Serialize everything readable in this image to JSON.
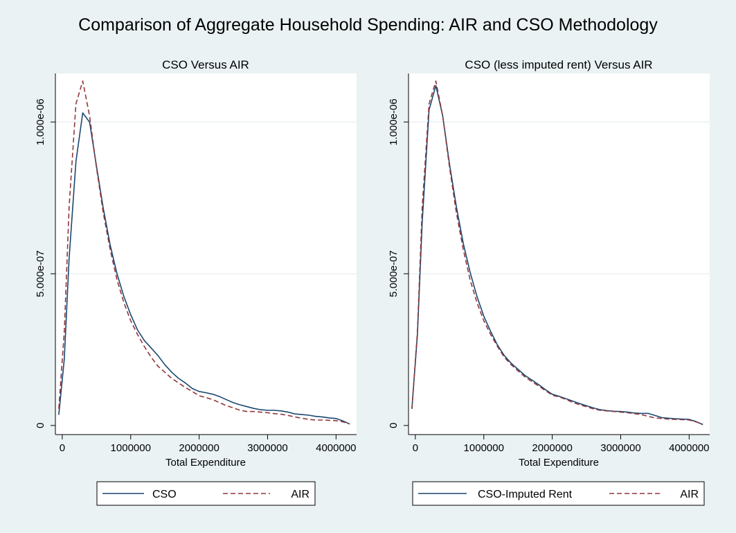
{
  "page": {
    "title": "Comparison of Aggregate Household Spending: AIR and CSO Methodology",
    "background": "#eaf2f3",
    "plot_background": "#ffffff"
  },
  "chart_data": [
    {
      "type": "line",
      "title": "CSO Versus AIR",
      "xlabel": "Total Expenditure",
      "ylabel": "",
      "xlim": [
        -100000,
        4300000
      ],
      "ylim": [
        -3e-08,
        1.16e-06
      ],
      "xticks": [
        0,
        1000000,
        2000000,
        3000000,
        4000000
      ],
      "xtick_labels": [
        "0",
        "1000000",
        "2000000",
        "3000000",
        "4000000"
      ],
      "yticks": [
        0,
        5e-07,
        1e-06
      ],
      "ytick_labels": [
        "0",
        "5.000e-07",
        "1.000e-06"
      ],
      "grid": "horizontal",
      "legend": "bottom",
      "series": [
        {
          "name": "CSO",
          "color": "#1a476f",
          "dash": "solid",
          "x": [
            -50000,
            30000,
            100000,
            200000,
            300000,
            400000,
            500000,
            600000,
            700000,
            800000,
            900000,
            1000000,
            1100000,
            1200000,
            1300000,
            1400000,
            1500000,
            1600000,
            1700000,
            1800000,
            1900000,
            2000000,
            2100000,
            2200000,
            2300000,
            2400000,
            2500000,
            2600000,
            2700000,
            2800000,
            2900000,
            3000000,
            3100000,
            3200000,
            3300000,
            3400000,
            3500000,
            3600000,
            3700000,
            3800000,
            3900000,
            4000000,
            4100000,
            4200000
          ],
          "y": [
            3.5e-08,
            2.2e-07,
            5.5e-07,
            8.7e-07,
            1.03e-06,
            1e-06,
            8.55e-07,
            7.15e-07,
            5.95e-07,
            5e-07,
            4.25e-07,
            3.65e-07,
            3.15e-07,
            2.8e-07,
            2.55e-07,
            2.3e-07,
            2e-07,
            1.75e-07,
            1.55e-07,
            1.4e-07,
            1.22e-07,
            1.12e-07,
            1.08e-07,
            1.03e-07,
            9.5e-08,
            8.5e-08,
            7.5e-08,
            6.8e-08,
            6.2e-08,
            5.6e-08,
            5.2e-08,
            5e-08,
            5e-08,
            4.8e-08,
            4.4e-08,
            3.8e-08,
            3.6e-08,
            3.4e-08,
            3e-08,
            2.8e-08,
            2.5e-08,
            2.3e-08,
            1.5e-08,
            5e-09
          ]
        },
        {
          "name": "AIR",
          "color": "#90353b",
          "dash": "dashed",
          "x": [
            -50000,
            30000,
            100000,
            200000,
            300000,
            400000,
            500000,
            600000,
            700000,
            800000,
            900000,
            1000000,
            1100000,
            1200000,
            1300000,
            1400000,
            1500000,
            1600000,
            1700000,
            1800000,
            1900000,
            2000000,
            2100000,
            2200000,
            2300000,
            2400000,
            2500000,
            2600000,
            2700000,
            2800000,
            2900000,
            3000000,
            3100000,
            3200000,
            3300000,
            3400000,
            3500000,
            3600000,
            3700000,
            3800000,
            3900000,
            4000000,
            4100000,
            4200000
          ],
          "y": [
            5.5e-08,
            3.1e-07,
            7.2e-07,
            1.06e-06,
            1.135e-06,
            1.02e-06,
            8.5e-07,
            7e-07,
            5.8e-07,
            4.8e-07,
            4.05e-07,
            3.45e-07,
            3e-07,
            2.6e-07,
            2.25e-07,
            1.95e-07,
            1.75e-07,
            1.55e-07,
            1.4e-07,
            1.25e-07,
            1.12e-07,
            9.8e-08,
            9.2e-08,
            8.5e-08,
            7.5e-08,
            6.5e-08,
            5.8e-08,
            5e-08,
            4.6e-08,
            4.6e-08,
            4.4e-08,
            4.2e-08,
            3.9e-08,
            3.7e-08,
            3.3e-08,
            2.8e-08,
            2.4e-08,
            2e-08,
            1.8e-08,
            1.8e-08,
            1.7e-08,
            1.6e-08,
            1.2e-08,
            5e-09
          ]
        }
      ]
    },
    {
      "type": "line",
      "title": "CSO (less imputed rent) Versus AIR",
      "xlabel": "Total Expenditure",
      "ylabel": "",
      "xlim": [
        -100000,
        4300000
      ],
      "ylim": [
        -3e-08,
        1.16e-06
      ],
      "xticks": [
        0,
        1000000,
        2000000,
        3000000,
        4000000
      ],
      "xtick_labels": [
        "0",
        "1000000",
        "2000000",
        "3000000",
        "4000000"
      ],
      "yticks": [
        0,
        5e-07,
        1e-06
      ],
      "ytick_labels": [
        "0",
        "5.000e-07",
        "1.000e-06"
      ],
      "grid": "horizontal",
      "legend": "bottom",
      "series": [
        {
          "name": "CSO-Imputed Rent",
          "color": "#1a476f",
          "dash": "solid",
          "x": [
            -50000,
            30000,
            100000,
            200000,
            300000,
            400000,
            500000,
            600000,
            700000,
            800000,
            900000,
            1000000,
            1100000,
            1200000,
            1300000,
            1400000,
            1500000,
            1600000,
            1700000,
            1800000,
            1900000,
            2000000,
            2100000,
            2200000,
            2300000,
            2400000,
            2500000,
            2600000,
            2700000,
            2800000,
            2900000,
            3000000,
            3100000,
            3200000,
            3300000,
            3400000,
            3500000,
            3600000,
            3700000,
            3800000,
            3900000,
            4000000,
            4100000,
            4200000
          ],
          "y": [
            5.5e-08,
            3e-07,
            6.7e-07,
            1.04e-06,
            1.12e-06,
            1.02e-06,
            8.6e-07,
            7.2e-07,
            6e-07,
            5.05e-07,
            4.25e-07,
            3.6e-07,
            3.1e-07,
            2.65e-07,
            2.3e-07,
            2.05e-07,
            1.85e-07,
            1.65e-07,
            1.5e-07,
            1.35e-07,
            1.18e-07,
            1.03e-07,
            9.6e-08,
            8.8e-08,
            8e-08,
            7.2e-08,
            6.5e-08,
            5.8e-08,
            5.2e-08,
            4.9e-08,
            4.7e-08,
            4.6e-08,
            4.4e-08,
            4.1e-08,
            4e-08,
            4e-08,
            3.3e-08,
            2.6e-08,
            2.4e-08,
            2.2e-08,
            2.1e-08,
            2e-08,
            1.3e-08,
            3e-09
          ]
        },
        {
          "name": "AIR",
          "color": "#90353b",
          "dash": "dashed",
          "x": [
            -50000,
            30000,
            100000,
            200000,
            300000,
            400000,
            500000,
            600000,
            700000,
            800000,
            900000,
            1000000,
            1100000,
            1200000,
            1300000,
            1400000,
            1500000,
            1600000,
            1700000,
            1800000,
            1900000,
            2000000,
            2100000,
            2200000,
            2300000,
            2400000,
            2500000,
            2600000,
            2700000,
            2800000,
            2900000,
            3000000,
            3100000,
            3200000,
            3300000,
            3400000,
            3500000,
            3600000,
            3700000,
            3800000,
            3900000,
            4000000,
            4100000,
            4200000
          ],
          "y": [
            5.5e-08,
            3.1e-07,
            7.2e-07,
            1.06e-06,
            1.135e-06,
            1.02e-06,
            8.5e-07,
            7e-07,
            5.8e-07,
            4.8e-07,
            4.05e-07,
            3.45e-07,
            3e-07,
            2.6e-07,
            2.25e-07,
            2e-07,
            1.8e-07,
            1.6e-07,
            1.45e-07,
            1.3e-07,
            1.15e-07,
            1e-07,
            9.4e-08,
            8.6e-08,
            7.6e-08,
            6.8e-08,
            6.2e-08,
            5.5e-08,
            5e-08,
            4.8e-08,
            4.6e-08,
            4.4e-08,
            4.2e-08,
            3.9e-08,
            3.6e-08,
            3e-08,
            2.5e-08,
            2.3e-08,
            2.1e-08,
            2e-08,
            1.9e-08,
            1.8e-08,
            1.2e-08,
            4e-09
          ]
        }
      ]
    }
  ]
}
